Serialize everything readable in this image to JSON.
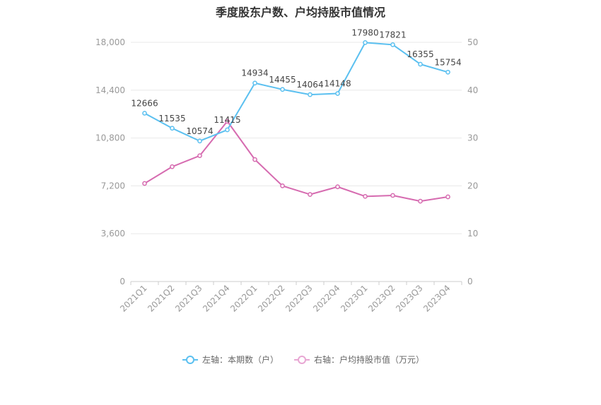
{
  "chart_data": {
    "type": "line",
    "title": "季度股东户数、户均持股市值情况",
    "categories": [
      "2021Q1",
      "2021Q2",
      "2021Q3",
      "2021Q4",
      "2022Q1",
      "2022Q2",
      "2022Q3",
      "2022Q4",
      "2023Q1",
      "2023Q2",
      "2023Q3",
      "2023Q4"
    ],
    "series": [
      {
        "name": "左轴：本期数（户）",
        "axis": "left",
        "color": "#5bc0f0",
        "values": [
          12666,
          11535,
          10574,
          11415,
          14934,
          14455,
          14064,
          14148,
          17980,
          17821,
          16355,
          15754
        ]
      },
      {
        "name": "右轴：户均持股市值（万元）",
        "axis": "right",
        "color": "#d66bb0",
        "values": [
          20.5,
          24.0,
          26.3,
          33.5,
          25.5,
          20.0,
          18.2,
          19.8,
          17.8,
          18.0,
          16.8,
          17.7
        ]
      }
    ],
    "y_left": {
      "min": 0,
      "max": 18000,
      "ticks": [
        0,
        3600,
        7200,
        10800,
        14400,
        18000
      ],
      "tick_labels": [
        "0",
        "3,600",
        "7,200",
        "10,800",
        "14,400",
        "18,000"
      ]
    },
    "y_right": {
      "min": 0,
      "max": 50,
      "ticks": [
        0,
        10,
        20,
        30,
        40,
        50
      ],
      "tick_labels": [
        "0",
        "10",
        "20",
        "30",
        "40",
        "50"
      ]
    },
    "grid": true,
    "legend_position": "bottom-center"
  }
}
